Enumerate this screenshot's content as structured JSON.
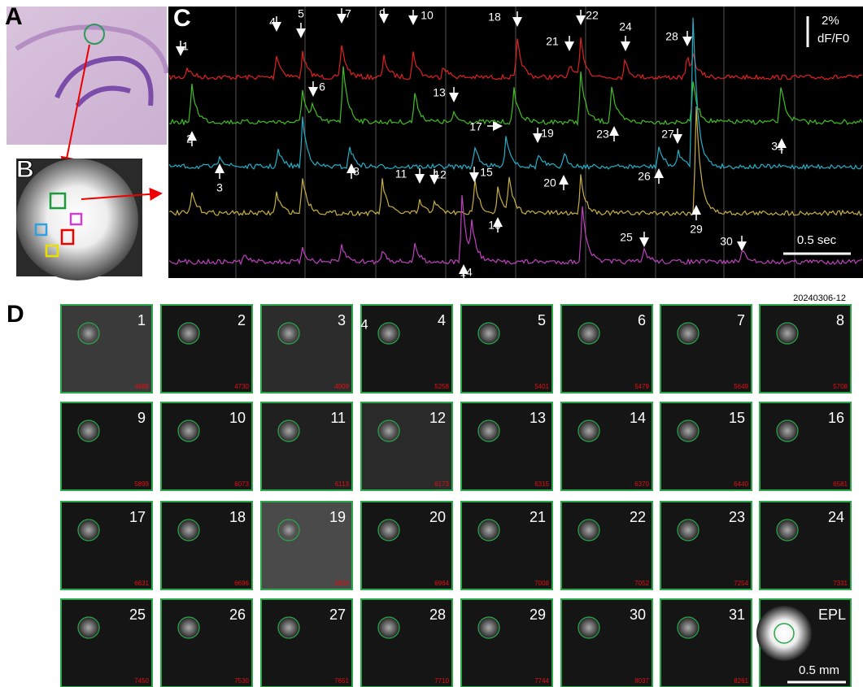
{
  "panels": {
    "a": "A",
    "b": "B",
    "c": "C",
    "d": "D"
  },
  "trace_panel": {
    "events": [
      "1",
      "2",
      "3",
      "4",
      "5",
      "6",
      "7",
      "8",
      "9",
      "10",
      "11",
      "12",
      "13",
      "14",
      "15",
      "16",
      "17",
      "18",
      "19",
      "20",
      "21",
      "22",
      "23",
      "24",
      "25",
      "26",
      "27",
      "28",
      "29",
      "30",
      "31"
    ],
    "scale_y": "2%",
    "scale_y_unit": "dF/F0",
    "scale_x": "0.5 sec"
  },
  "tile_panel": {
    "id": "20240306-12",
    "stray_label": "4",
    "tiles": [
      {
        "label": "1",
        "frame": "4688"
      },
      {
        "label": "2",
        "frame": "4730"
      },
      {
        "label": "3",
        "frame": "4909"
      },
      {
        "label": "4",
        "frame": "5258"
      },
      {
        "label": "5",
        "frame": "5401"
      },
      {
        "label": "6",
        "frame": "5479"
      },
      {
        "label": "7",
        "frame": "5649"
      },
      {
        "label": "8",
        "frame": "5708"
      },
      {
        "label": "9",
        "frame": "5899"
      },
      {
        "label": "10",
        "frame": "6073"
      },
      {
        "label": "11",
        "frame": "6113"
      },
      {
        "label": "12",
        "frame": "6173"
      },
      {
        "label": "13",
        "frame": "6315"
      },
      {
        "label": "14",
        "frame": "6370"
      },
      {
        "label": "15",
        "frame": "6440"
      },
      {
        "label": "16",
        "frame": "6581"
      },
      {
        "label": "17",
        "frame": "6631"
      },
      {
        "label": "18",
        "frame": "6696"
      },
      {
        "label": "19",
        "frame": "6826"
      },
      {
        "label": "20",
        "frame": "6964"
      },
      {
        "label": "21",
        "frame": "7008"
      },
      {
        "label": "22",
        "frame": "7052"
      },
      {
        "label": "23",
        "frame": "7254"
      },
      {
        "label": "24",
        "frame": "7331"
      },
      {
        "label": "25",
        "frame": "7450"
      },
      {
        "label": "26",
        "frame": "7530"
      },
      {
        "label": "27",
        "frame": "7651"
      },
      {
        "label": "28",
        "frame": "7710"
      },
      {
        "label": "29",
        "frame": "7744"
      },
      {
        "label": "30",
        "frame": "8037"
      },
      {
        "label": "31",
        "frame": "8261"
      },
      {
        "label": "EPL"
      }
    ],
    "scale": "0.5 mm"
  }
}
